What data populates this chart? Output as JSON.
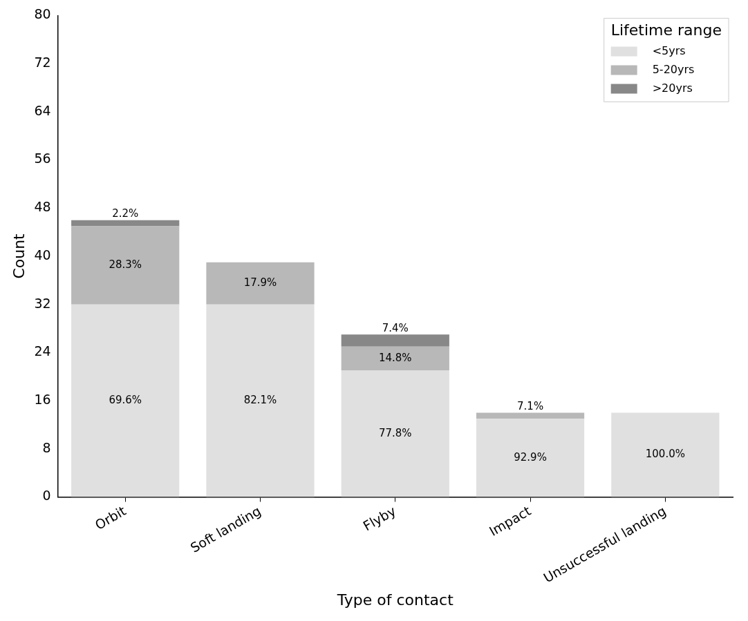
{
  "chart_data": {
    "type": "bar",
    "stacked": true,
    "xlabel": "Type of contact",
    "ylabel": "Count",
    "legend_title": "Lifetime range",
    "legend": "top right",
    "grid": false,
    "categories": [
      "Orbit",
      "Soft landing",
      "Flyby",
      "Impact",
      "Unsuccessful landing"
    ],
    "ylim": [
      0,
      80
    ],
    "yticks": [
      0,
      8,
      16,
      24,
      32,
      40,
      48,
      56,
      64,
      72,
      80
    ],
    "series": [
      {
        "name": "<5yrs",
        "color": "#e0e0e0",
        "values": [
          32,
          32,
          21,
          13,
          14
        ]
      },
      {
        "name": "5-20yrs",
        "color": "#b8b8b8",
        "values": [
          13,
          7,
          4,
          1,
          0
        ]
      },
      {
        "name": ">20yrs",
        "color": "#888888",
        "values": [
          1,
          0,
          2,
          0,
          0
        ]
      }
    ],
    "annotations": [
      "69.6%",
      "28.3%",
      "2.2%",
      "82.1%",
      "17.9%",
      "77.8%",
      "14.8%",
      "7.4%",
      "92.9%",
      "7.1%",
      "100.0%"
    ]
  }
}
